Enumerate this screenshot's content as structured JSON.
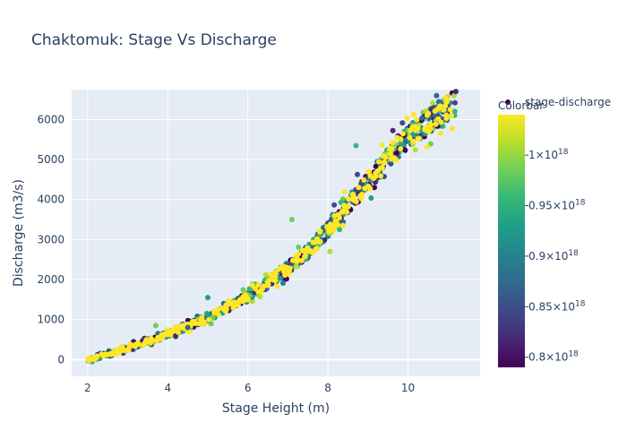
{
  "chart_data": {
    "type": "scatter",
    "title": "Chaktomuk: Stage Vs Discharge",
    "xlabel": "Stage Height (m)",
    "ylabel": "Discharge (m3/s)",
    "xlim": [
      1.6,
      11.8
    ],
    "ylim": [
      -420,
      6750
    ],
    "x_ticks": [
      2,
      4,
      6,
      8,
      10
    ],
    "x_tick_labels": [
      "2",
      "4",
      "6",
      "8",
      "10"
    ],
    "y_ticks": [
      0,
      1000,
      2000,
      3000,
      4000,
      5000,
      6000
    ],
    "y_tick_labels": [
      "0",
      "1000",
      "2000",
      "3000",
      "4000",
      "5000",
      "6000"
    ],
    "grid": true,
    "series": [
      {
        "name": "stage-discharge",
        "marker_color_hex": "#440154",
        "trend_points": [
          [
            2.0,
            0
          ],
          [
            2.5,
            120
          ],
          [
            3.0,
            280
          ],
          [
            3.5,
            450
          ],
          [
            4.0,
            630
          ],
          [
            4.5,
            830
          ],
          [
            5.0,
            1050
          ],
          [
            5.5,
            1300
          ],
          [
            6.0,
            1580
          ],
          [
            6.5,
            1920
          ],
          [
            7.0,
            2300
          ],
          [
            7.5,
            2700
          ],
          [
            8.0,
            3250
          ],
          [
            8.5,
            3850
          ],
          [
            9.0,
            4450
          ],
          [
            9.5,
            5050
          ],
          [
            10.0,
            5550
          ],
          [
            10.5,
            5950
          ],
          [
            11.0,
            6300
          ],
          [
            11.2,
            6420
          ]
        ],
        "notable_outliers": [
          [
            8.7,
            5350
          ],
          [
            8.05,
            2700
          ],
          [
            7.1,
            3500
          ],
          [
            5.0,
            1550
          ],
          [
            4.5,
            800
          ],
          [
            3.7,
            850
          ]
        ]
      }
    ],
    "legend_position": "top-right",
    "colorbar": {
      "title": "Colorbar",
      "range": [
        7.9e+17,
        1.04e+18
      ],
      "colorscale": "viridis",
      "ticks": [
        8e+17,
        8.5e+17,
        9e+17,
        9.5e+17,
        1e+18
      ],
      "tick_labels": [
        {
          "mantissa": "0.8",
          "exp": "18"
        },
        {
          "mantissa": "0.85",
          "exp": "18"
        },
        {
          "mantissa": "0.9",
          "exp": "18"
        },
        {
          "mantissa": "0.95",
          "exp": "18"
        },
        {
          "mantissa": "1",
          "exp": "18"
        }
      ]
    },
    "colors": {
      "plot_bg": "#e5ecf6",
      "grid": "#ffffff",
      "text": "#2a3f5f"
    }
  }
}
